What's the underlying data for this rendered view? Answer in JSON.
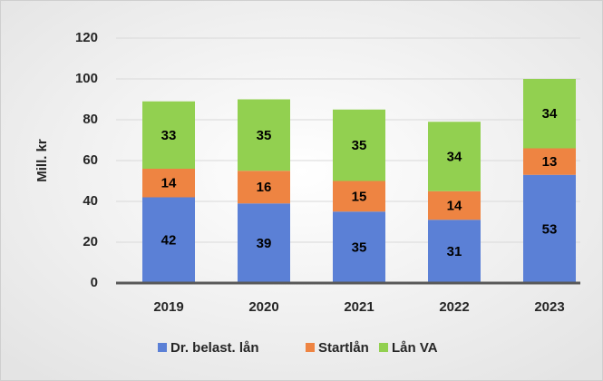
{
  "chart_data": {
    "type": "stacked_bar",
    "y_label": "Mill. kr",
    "categories": [
      "2019",
      "2020",
      "2021",
      "2022",
      "2023"
    ],
    "series": [
      {
        "name": "Dr. belast. lån",
        "color": "#5b80d6",
        "values": [
          42,
          39,
          35,
          31,
          53
        ]
      },
      {
        "name": "Startlån",
        "color": "#ee8442",
        "values": [
          14,
          16,
          15,
          14,
          13
        ]
      },
      {
        "name": "Lån VA",
        "color": "#92d050",
        "values": [
          33,
          35,
          35,
          34,
          34
        ]
      }
    ],
    "ylim": [
      0,
      120
    ],
    "yticks": [
      0,
      20,
      40,
      60,
      80,
      100,
      120
    ],
    "grid": true,
    "legend": "bottom"
  }
}
